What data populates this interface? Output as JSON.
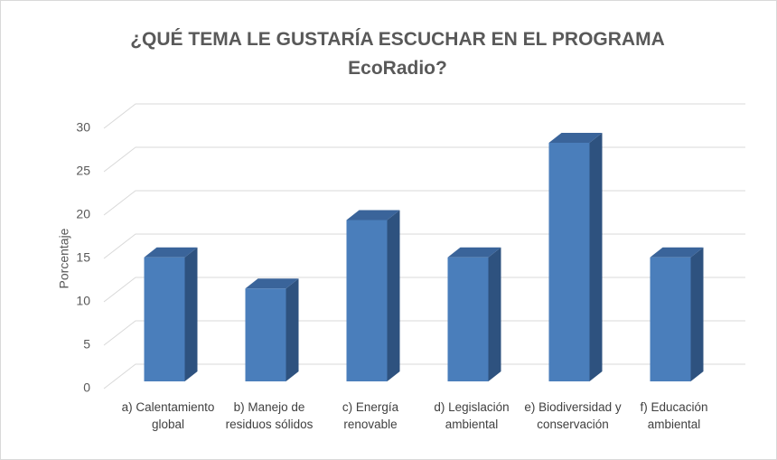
{
  "chart_data": {
    "type": "bar3d",
    "title": "¿QUÉ TEMA LE GUSTARÍA ESCUCHAR EN EL PROGRAMA EcoRadio?",
    "y_label": "Porcentaje",
    "categories": [
      "a) Calentamiento global",
      "b) Manejo de residuos sólidos",
      "c) Energía renovable",
      "d) Legislación ambiental",
      "e) Biodiversidad y conservación",
      "f) Educación ambiental"
    ],
    "values": [
      14.3,
      10.7,
      18.6,
      14.3,
      27.5,
      14.3
    ],
    "color": "#4a7ebb",
    "ylim": [
      0,
      30
    ],
    "yticks": [
      0,
      5,
      10,
      15,
      20,
      25,
      30
    ],
    "grid": true
  }
}
